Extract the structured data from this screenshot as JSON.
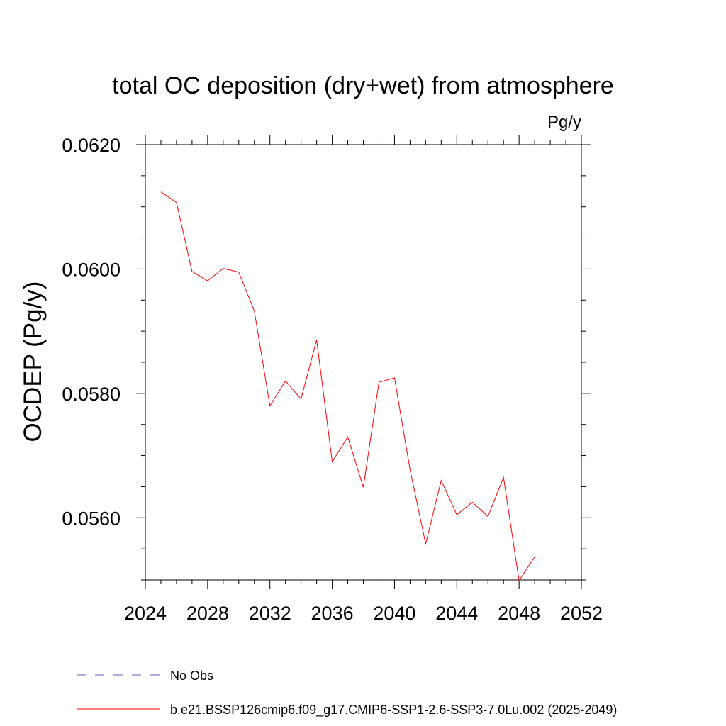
{
  "chart_data": {
    "type": "line",
    "title": "total OC deposition (dry+wet) from atmosphere",
    "subtitle": "Pg/y",
    "xlabel": "",
    "ylabel": "OCDEP  (Pg/y)",
    "xlim": [
      2024,
      2052
    ],
    "ylim": [
      0.055,
      0.062
    ],
    "x_ticks": [
      2024,
      2028,
      2032,
      2036,
      2040,
      2044,
      2048,
      2052
    ],
    "x_tick_labels": [
      "2024",
      "2028",
      "2032",
      "2036",
      "2040",
      "2044",
      "2048",
      "2052"
    ],
    "y_ticks": [
      0.056,
      0.058,
      0.06,
      0.062
    ],
    "y_tick_labels": [
      "0.0560",
      "0.0580",
      "0.0600",
      "0.0620"
    ],
    "x_minor_step": 1,
    "y_minor_step": 0.0005,
    "grid": false,
    "legend_position": "bottom",
    "series": [
      {
        "name": "b.e21.BSSP126cmip6.f09_g17.CMIP6-SSP1-2.6-SSP3-7.0Lu.002 (2025-2049)",
        "color": "#ff0000",
        "style": "solid",
        "x": [
          2025,
          2026,
          2027,
          2028,
          2029,
          2030,
          2031,
          2032,
          2033,
          2034,
          2035,
          2036,
          2037,
          2038,
          2039,
          2040,
          2041,
          2042,
          2043,
          2044,
          2045,
          2046,
          2047,
          2048,
          2049
        ],
        "values": [
          0.06124,
          0.06107,
          0.05996,
          0.05981,
          0.06001,
          0.05995,
          0.05932,
          0.0578,
          0.0582,
          0.05791,
          0.05886,
          0.0569,
          0.0573,
          0.05649,
          0.05818,
          0.05825,
          0.05677,
          0.05558,
          0.0566,
          0.05605,
          0.05625,
          0.05602,
          0.05665,
          0.05499,
          0.05537
        ]
      }
    ],
    "legend": [
      {
        "label": "No Obs",
        "color": "#6a5acd",
        "style": "dashed"
      },
      {
        "label": "b.e21.BSSP126cmip6.f09_g17.CMIP6-SSP1-2.6-SSP3-7.0Lu.002 (2025-2049)",
        "color": "#ff0000",
        "style": "solid"
      }
    ]
  }
}
